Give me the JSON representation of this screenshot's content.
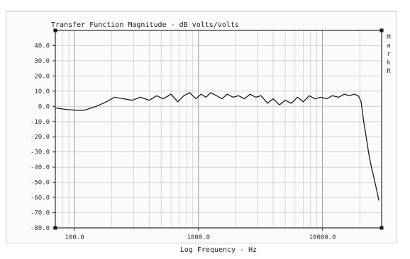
{
  "chart_data": {
    "type": "line",
    "title": "Transfer Function Magnitude - dB volts/volts",
    "xlabel": "Log Frequency - Hz",
    "ylabel": "",
    "xscale": "log",
    "xlim": [
      70,
      30000
    ],
    "ylim": [
      -80,
      50
    ],
    "x_tick_labels": [
      {
        "value": 100,
        "label": "100.0"
      },
      {
        "value": 1000,
        "label": "1000.0"
      },
      {
        "value": 10000,
        "label": "10000.0"
      }
    ],
    "y_tick_labels": [
      {
        "value": 40,
        "label": "40.0"
      },
      {
        "value": 30,
        "label": "30.0"
      },
      {
        "value": 20,
        "label": "20.0"
      },
      {
        "value": 10,
        "label": "10.0"
      },
      {
        "value": 0,
        "label": "0.0"
      },
      {
        "value": -10,
        "label": "-10.0"
      },
      {
        "value": -20,
        "label": "-20.0"
      },
      {
        "value": -30,
        "label": "-30.0"
      },
      {
        "value": -40,
        "label": "-40.0"
      },
      {
        "value": -50,
        "label": "-50.0"
      },
      {
        "value": -60,
        "label": "-60.0"
      },
      {
        "value": -70,
        "label": "-70.0"
      },
      {
        "value": -80,
        "label": "-80.0"
      }
    ],
    "side_letters": [
      "M",
      "a",
      "r",
      "k",
      "R"
    ],
    "grid": true,
    "series": [
      {
        "x": [
          70,
          85,
          100,
          120,
          150,
          180,
          210,
          250,
          290,
          340,
          400,
          460,
          520,
          600,
          680,
          760,
          850,
          950,
          1050,
          1150,
          1250,
          1400,
          1550,
          1700,
          1900,
          2100,
          2350,
          2600,
          2900,
          3200,
          3600,
          4000,
          4500,
          5000,
          5600,
          6300,
          7000,
          7800,
          8700,
          9700,
          10800,
          12000,
          13500,
          15000,
          16500,
          18000,
          19500,
          20500,
          21500,
          22500,
          23500,
          24500,
          25500,
          26500,
          27500,
          28500
        ],
        "y": [
          -1,
          -2,
          -2.5,
          -2.5,
          0,
          3,
          6,
          5,
          4,
          6,
          4,
          7,
          5,
          8,
          3,
          7,
          9,
          5,
          8,
          6,
          9,
          7,
          5,
          8,
          6,
          7,
          5,
          8,
          6,
          7,
          2,
          5,
          1,
          4,
          2,
          6,
          3,
          7,
          5,
          6,
          5,
          7,
          6,
          8,
          7,
          8,
          7,
          3,
          -10,
          -20,
          -30,
          -38,
          -44,
          -50,
          -56,
          -62
        ],
        "color": "#1a1a1a"
      }
    ]
  }
}
